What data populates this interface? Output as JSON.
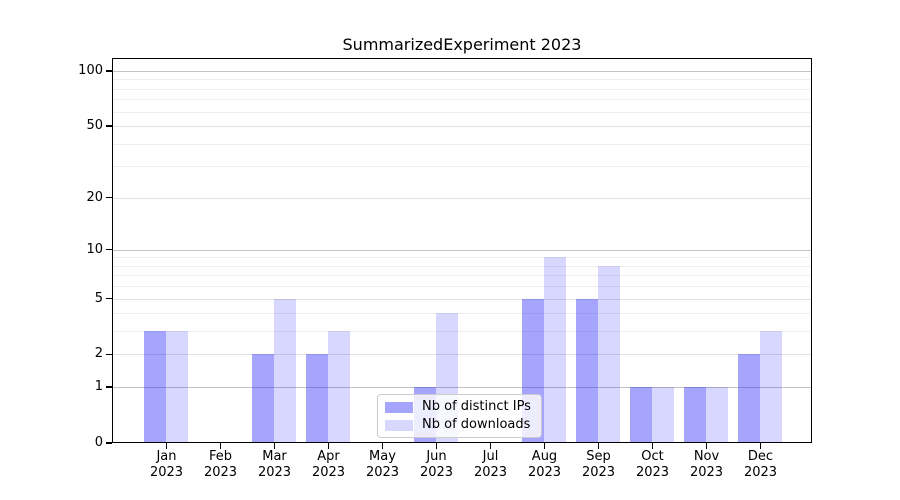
{
  "title": "SummarizedExperiment 2023",
  "colors": {
    "bar_distinct_ips": "rgba(40,40,250,0.42)",
    "bar_downloads": "rgba(40,40,250,0.18)",
    "grid_major": "#c3c3c3",
    "grid_labeled": "#e1e1e1",
    "grid_minor": "#eeeeee",
    "axis": "#000000"
  },
  "chart_data": {
    "type": "bar",
    "title": "SummarizedExperiment 2023",
    "y_scale": "log1p",
    "categories": [
      "Jan",
      "Feb",
      "Mar",
      "Apr",
      "May",
      "Jun",
      "Jul",
      "Aug",
      "Sep",
      "Oct",
      "Nov",
      "Dec"
    ],
    "category_year": "2023",
    "series": [
      {
        "name": "Nb of distinct IPs",
        "values": [
          3,
          0,
          2,
          2,
          0,
          1,
          0,
          5,
          5,
          1,
          1,
          2
        ]
      },
      {
        "name": "Nb of downloads",
        "values": [
          3,
          0,
          5,
          3,
          0,
          4,
          0,
          9,
          8,
          1,
          1,
          3
        ]
      }
    ],
    "y_ticks": [
      0,
      1,
      2,
      5,
      10,
      20,
      50,
      100
    ],
    "y_major_gridlines": [
      1,
      10,
      100
    ],
    "y_minor_gridlines": [
      3,
      4,
      6,
      7,
      8,
      9,
      30,
      40,
      60,
      70,
      80,
      90
    ],
    "ylim": [
      0,
      117
    ],
    "grid": "on",
    "legend_position": "lower-center"
  }
}
